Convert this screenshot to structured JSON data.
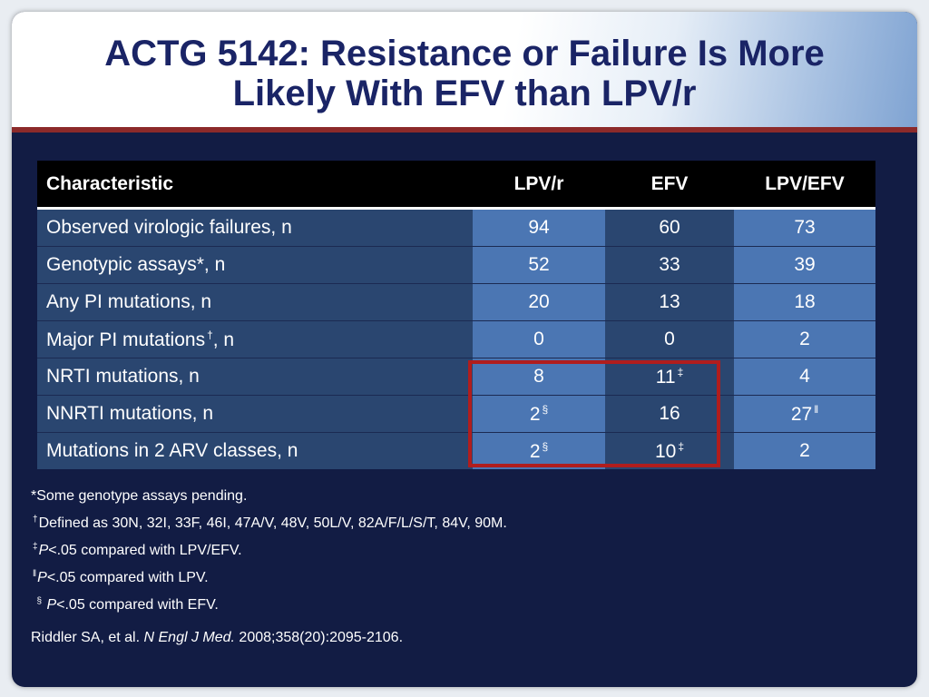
{
  "title": {
    "line1": "ACTG 5142:  Resistance or Failure Is More",
    "line2": "Likely With EFV than LPV/r"
  },
  "table": {
    "headers": [
      "Characteristic",
      "LPV/r",
      "EFV",
      "LPV/EFV"
    ],
    "rows": [
      {
        "label": "Observed virologic failures, n",
        "lpv": "94",
        "efv": "60",
        "ratio": "73"
      },
      {
        "label": "Genotypic assays*, n",
        "lpv": "52",
        "efv": "33",
        "ratio": "39"
      },
      {
        "label": "Any PI mutations, n",
        "lpv": "20",
        "efv": "13",
        "ratio": "18"
      },
      {
        "label": "Major PI mutations",
        "label_sup": "†",
        "label_suffix": ", n",
        "lpv": "0",
        "efv": "0",
        "ratio": "2"
      },
      {
        "label": "NRTI mutations, n",
        "lpv": "8",
        "efv": "11",
        "efv_sup": "‡",
        "ratio": "4"
      },
      {
        "label": "NNRTI mutations, n",
        "lpv": "2",
        "lpv_sup": "§",
        "efv": "16",
        "ratio": "27",
        "ratio_sup": "ǁ"
      },
      {
        "label": "Mutations in 2 ARV classes, n",
        "lpv": "2",
        "lpv_sup": "§",
        "efv": "10",
        "efv_sup": "‡",
        "ratio": "2"
      }
    ]
  },
  "footnotes": {
    "n1": "*Some genotype assays pending.",
    "n2_sym": "†",
    "n2": "Defined as 30N, 32I, 33F, 46I, 47A/V, 48V, 50L/V, 82A/F/L/S/T, 84V, 90M.",
    "n3_sym": "‡",
    "n3_p": "P",
    "n3": "<.05 compared with LPV/EFV.",
    "n4_sym": "ǁ",
    "n4_p": "P",
    "n4": "<.05 compared with LPV.",
    "n5_sym": "§",
    "n5_p": "P",
    "n5": "<.05 compared with EFV."
  },
  "reference": {
    "authors": "Riddler SA, et al. ",
    "journal": "N Engl J Med.",
    "details": " 2008;358(20):2095-2106."
  },
  "colors": {
    "background": "#121c44",
    "title": "#1a2466",
    "accent_rule": "#8c2a2a",
    "highlight": "#b01d1d"
  }
}
